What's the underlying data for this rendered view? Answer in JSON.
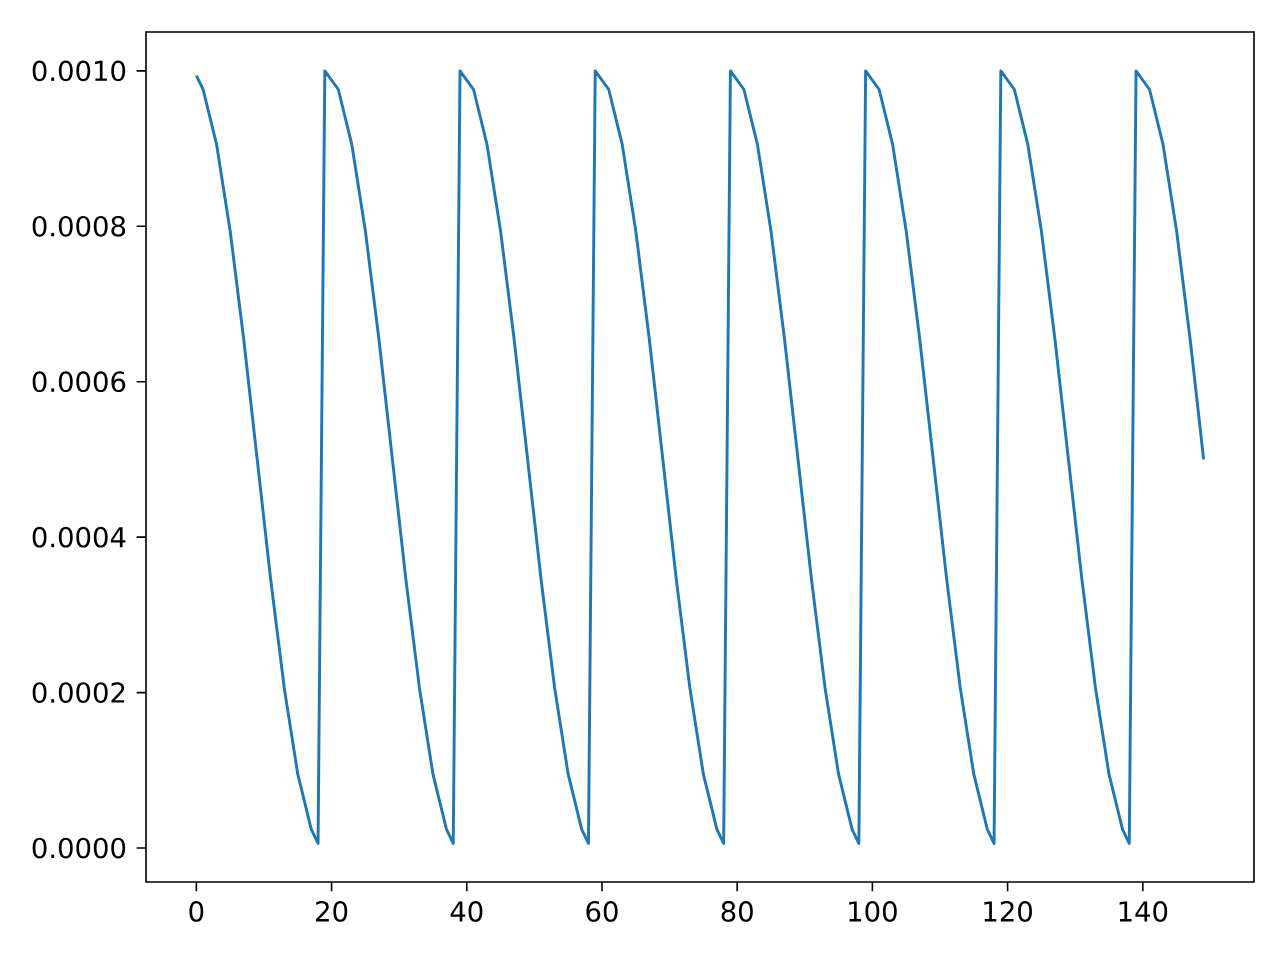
{
  "chart_data": {
    "type": "line",
    "color": "#1f77b4",
    "marker": "none",
    "line_style": "solid",
    "x": [
      0,
      1,
      3,
      5,
      7,
      9,
      11,
      13,
      15,
      17,
      18,
      19,
      21,
      23,
      25,
      27,
      29,
      31,
      33,
      35,
      37,
      38,
      39,
      41,
      43,
      45,
      47,
      49,
      51,
      53,
      55,
      57,
      58,
      59,
      61,
      63,
      65,
      67,
      69,
      71,
      73,
      75,
      77,
      78,
      79,
      81,
      83,
      85,
      87,
      89,
      91,
      93,
      95,
      97,
      98,
      99,
      101,
      103,
      105,
      107,
      109,
      111,
      113,
      115,
      117,
      118,
      119,
      121,
      123,
      125,
      127,
      129,
      131,
      133,
      135,
      137,
      138,
      139,
      141,
      143,
      145,
      147,
      149
    ],
    "values": [
      0.000994,
      0.000976,
      0.000905,
      0.000794,
      0.000655,
      0.0005,
      0.000345,
      0.000206,
      9.5e-05,
      2.4e-05,
      6e-06,
      0.001,
      0.000976,
      0.000905,
      0.000794,
      0.000655,
      0.0005,
      0.000345,
      0.000206,
      9.5e-05,
      2.4e-05,
      6e-06,
      0.001,
      0.000976,
      0.000905,
      0.000794,
      0.000655,
      0.0005,
      0.000345,
      0.000206,
      9.5e-05,
      2.4e-05,
      6e-06,
      0.001,
      0.000976,
      0.000905,
      0.000794,
      0.000655,
      0.0005,
      0.000345,
      0.000206,
      9.5e-05,
      2.4e-05,
      6e-06,
      0.001,
      0.000976,
      0.000905,
      0.000794,
      0.000655,
      0.0005,
      0.000345,
      0.000206,
      9.5e-05,
      2.4e-05,
      6e-06,
      0.001,
      0.000976,
      0.000905,
      0.000794,
      0.000655,
      0.0005,
      0.000345,
      0.000206,
      9.5e-05,
      2.4e-05,
      6e-06,
      0.001,
      0.000976,
      0.000905,
      0.000794,
      0.000655,
      0.0005,
      0.000345,
      0.000206,
      9.5e-05,
      2.4e-05,
      6e-06,
      0.001,
      0.000976,
      0.000905,
      0.000794,
      0.000655,
      0.0005
    ],
    "xlim": [
      -7.45,
      156.45
    ],
    "ylim": [
      -4.37e-05,
      0.00105
    ],
    "xticks": [
      0,
      20,
      40,
      60,
      80,
      100,
      120,
      140
    ],
    "yticks": [
      {
        "value": 0,
        "label": "0.0000"
      },
      {
        "value": 0.0002,
        "label": "0.0002"
      },
      {
        "value": 0.0004,
        "label": "0.0004"
      },
      {
        "value": 0.0006,
        "label": "0.0006"
      },
      {
        "value": 0.0008,
        "label": "0.0008"
      },
      {
        "value": 0.001,
        "label": "0.0010"
      }
    ]
  }
}
